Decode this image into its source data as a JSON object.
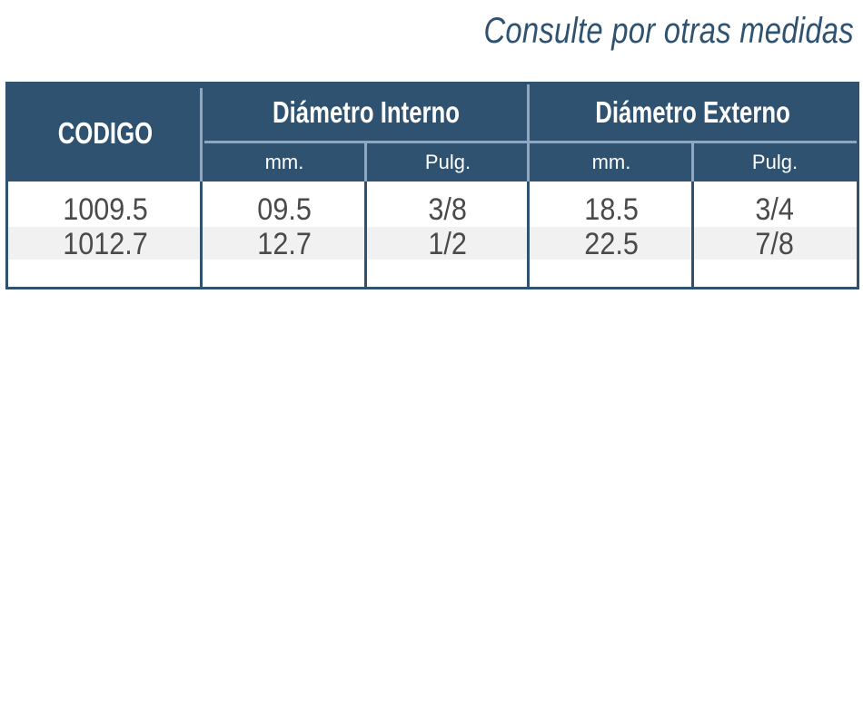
{
  "note": "Consulte por otras medidas",
  "table": {
    "headers": {
      "codigo": "CODIGO",
      "diametro_interno": "Diámetro Interno",
      "diametro_externo": "Diámetro Externo",
      "int_mm": "mm.",
      "int_pulg": "Pulg.",
      "ext_mm": "mm.",
      "ext_pulg": "Pulg."
    },
    "rows": [
      [
        "1009.5",
        "09.5",
        "3/8",
        "18.5",
        "3/4"
      ],
      [
        "1012.7",
        "12.7",
        "1/2",
        "22.5",
        "7/8"
      ]
    ]
  },
  "colors": {
    "header_bg": "#2e5270",
    "divider": "#8ea8c2",
    "text": "#4a4a4a",
    "alt_row": "#f1f1f1"
  }
}
